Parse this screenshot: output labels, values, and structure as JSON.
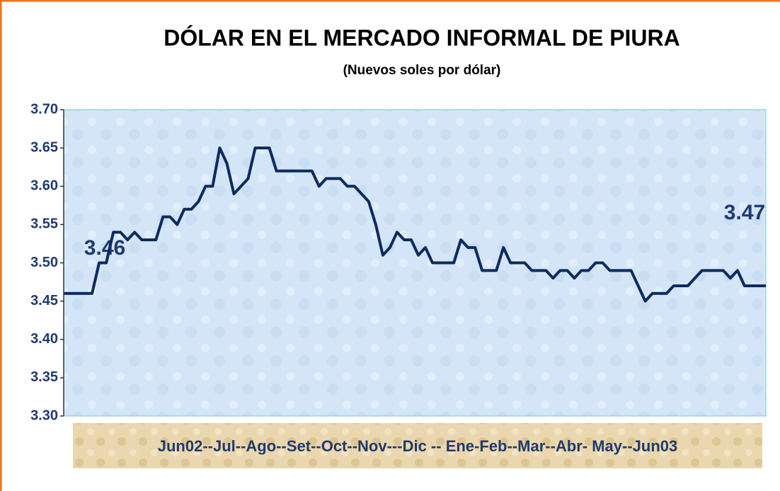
{
  "chart_data": {
    "type": "line",
    "title": "DÓLAR EN EL MERCADO INFORMAL DE PIURA",
    "subtitle": "(Nuevos soles por dólar)",
    "x_label": "Jun02--Jul--Ago--Set--Oct--Nov---Dic -- Ene-Feb--Mar--Abr- May--Jun03",
    "annotations": [
      "3.46",
      "3.47"
    ],
    "color": "#0d2b5e",
    "ylim": [
      3.3,
      3.7
    ],
    "yticks": [
      {
        "value": 3.3,
        "label": "3.30"
      },
      3.35,
      {
        "value": 3.4,
        "label": "3.40"
      },
      3.45,
      {
        "value": 3.5,
        "label": "3.50"
      },
      3.55,
      {
        "value": 3.6,
        "label": "3.60"
      },
      3.65,
      {
        "value": 3.7,
        "label": "3.70"
      }
    ],
    "values": [
      3.46,
      3.46,
      3.46,
      3.46,
      3.46,
      3.5,
      3.5,
      3.54,
      3.54,
      3.53,
      3.54,
      3.53,
      3.53,
      3.53,
      3.56,
      3.56,
      3.55,
      3.57,
      3.57,
      3.58,
      3.6,
      3.6,
      3.65,
      3.63,
      3.59,
      3.6,
      3.61,
      3.65,
      3.65,
      3.65,
      3.62,
      3.62,
      3.62,
      3.62,
      3.62,
      3.62,
      3.6,
      3.61,
      3.61,
      3.61,
      3.6,
      3.6,
      3.59,
      3.58,
      3.55,
      3.51,
      3.52,
      3.54,
      3.53,
      3.53,
      3.51,
      3.52,
      3.5,
      3.5,
      3.5,
      3.5,
      3.53,
      3.52,
      3.52,
      3.49,
      3.49,
      3.49,
      3.52,
      3.5,
      3.5,
      3.5,
      3.49,
      3.49,
      3.49,
      3.48,
      3.49,
      3.49,
      3.48,
      3.49,
      3.49,
      3.5,
      3.5,
      3.49,
      3.49,
      3.49,
      3.49,
      3.47,
      3.45,
      3.46,
      3.46,
      3.46,
      3.47,
      3.47,
      3.47,
      3.48,
      3.49,
      3.49,
      3.49,
      3.49,
      3.48,
      3.49,
      3.47,
      3.47,
      3.47,
      3.47
    ]
  }
}
